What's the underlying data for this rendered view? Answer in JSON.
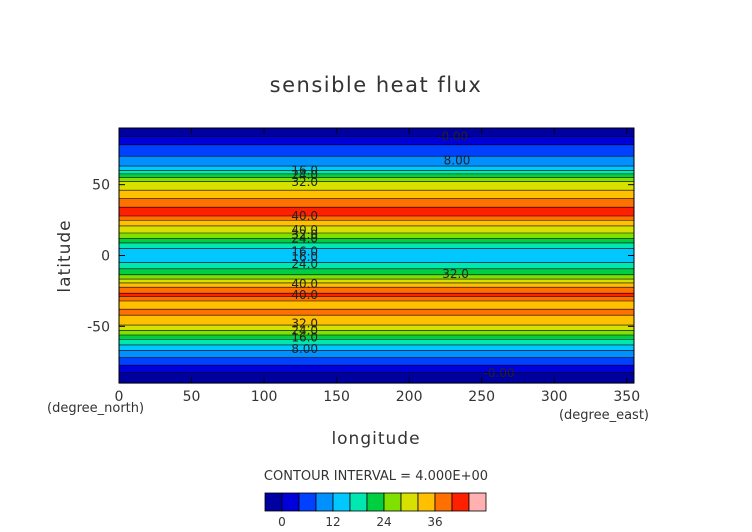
{
  "chart_data": {
    "type": "heatmap",
    "title": "sensible heat flux",
    "xlabel": "longitude",
    "ylabel": "latitude",
    "x_unit_label": "(degree_east)",
    "y_unit_label": "(degree_north)",
    "xlim": [
      0,
      355
    ],
    "ylim": [
      -90,
      90
    ],
    "x_ticks": [
      0,
      50,
      100,
      150,
      200,
      250,
      300,
      350
    ],
    "y_ticks": [
      -50,
      0,
      50
    ],
    "contour_interval_text": "CONTOUR INTERVAL = 4.000E+00",
    "colorbar": {
      "ticks": [
        0,
        12,
        24,
        36
      ],
      "levels": [
        -4,
        0,
        4,
        8,
        12,
        16,
        20,
        24,
        28,
        32,
        36,
        40,
        44
      ],
      "colors": [
        "#0000a0",
        "#0000d8",
        "#0040ff",
        "#0090ff",
        "#00c8ff",
        "#00e8b0",
        "#00d040",
        "#80e000",
        "#d8e000",
        "#ffc000",
        "#ff7000",
        "#ff2000",
        "#ffb0b0"
      ]
    },
    "zonal_profile": {
      "lat": [
        -90,
        -84,
        -80,
        -76,
        -72,
        -68,
        -64,
        -60,
        -56,
        -52,
        -48,
        -44,
        -40,
        -36,
        -32,
        -28,
        -24,
        -20,
        -16,
        -12,
        -8,
        -4,
        0,
        4,
        8,
        12,
        16,
        20,
        24,
        28,
        32,
        36,
        40,
        44,
        48,
        52,
        56,
        60,
        64,
        68,
        72,
        76,
        80,
        84,
        90
      ],
      "value": [
        -1,
        -1,
        2,
        5,
        8,
        11,
        15,
        19,
        24,
        29,
        33,
        34,
        38,
        34,
        36,
        41,
        38,
        33,
        27,
        22,
        19,
        15,
        13,
        15,
        19,
        24,
        28,
        31,
        35,
        40,
        42,
        38,
        36,
        33,
        31,
        28,
        23,
        16,
        11,
        9,
        7,
        5,
        3,
        0,
        -2
      ]
    },
    "contour_labels": [
      {
        "text": "-0.00",
        "lon": 230,
        "lat": 84
      },
      {
        "text": "8.00",
        "lon": 233,
        "lat": 67
      },
      {
        "text": "16.0",
        "lon": 128,
        "lat": 60
      },
      {
        "text": "24.0",
        "lon": 128,
        "lat": 57
      },
      {
        "text": "32.0",
        "lon": 128,
        "lat": 52
      },
      {
        "text": "40.0",
        "lon": 128,
        "lat": 28
      },
      {
        "text": "40.0",
        "lon": 128,
        "lat": 18
      },
      {
        "text": "32.0",
        "lon": 128,
        "lat": 15
      },
      {
        "text": "24.0",
        "lon": 128,
        "lat": 12
      },
      {
        "text": "16.0",
        "lon": 128,
        "lat": 3
      },
      {
        "text": "16.0",
        "lon": 128,
        "lat": -1
      },
      {
        "text": "24.0",
        "lon": 128,
        "lat": -6
      },
      {
        "text": "32.0",
        "lon": 232,
        "lat": -13
      },
      {
        "text": "40.0",
        "lon": 128,
        "lat": -20
      },
      {
        "text": "40.0",
        "lon": 128,
        "lat": -28
      },
      {
        "text": "32.0",
        "lon": 128,
        "lat": -48
      },
      {
        "text": "24.0",
        "lon": 128,
        "lat": -53
      },
      {
        "text": "16.0",
        "lon": 128,
        "lat": -58
      },
      {
        "text": "8.00",
        "lon": 128,
        "lat": -66
      },
      {
        "text": "-0.00",
        "lon": 262,
        "lat": -83
      }
    ]
  }
}
